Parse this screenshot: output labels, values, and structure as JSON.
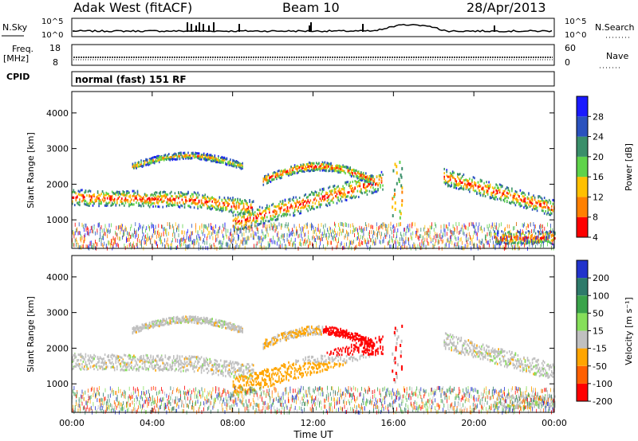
{
  "header": {
    "station": "Adak West (fitACF)",
    "beam": "Beam 10",
    "date": "28/Apr/2013"
  },
  "strip_labels": {
    "nsky": "N.Sky",
    "nsearch": "N.Search",
    "freq": "Freq.",
    "freq_unit": "[MHz]",
    "nave": "Nave",
    "cpid": "CPID",
    "cpid_text": "normal (fast) 151 RF",
    "nsky_ticks": [
      "10^5",
      "10^0"
    ],
    "nsearch_ticks": [
      "10^5",
      "10^0"
    ],
    "freq_ticks": [
      "18",
      "8"
    ],
    "nave_ticks": [
      "60",
      "0"
    ]
  },
  "chart_data": [
    {
      "type": "heatmap",
      "name": "power",
      "ylabel": "Slant Range [km]",
      "ylim": [
        200,
        4600
      ],
      "yticks": [
        "4000",
        "3000",
        "2000",
        "1000"
      ],
      "colorbar_label": "Power [dB]",
      "colorbar_ticks": [
        "28",
        "24",
        "20",
        "16",
        "12",
        "8",
        "4"
      ],
      "colors": [
        "#1a1aff",
        "#2a52be",
        "#3a8f6a",
        "#5fd34a",
        "#ffc000",
        "#ff8000",
        "#ff0000"
      ]
    },
    {
      "type": "heatmap",
      "name": "velocity",
      "ylabel": "Slant Range [km]",
      "ylim": [
        200,
        4600
      ],
      "yticks": [
        "4000",
        "3000",
        "2000",
        "1000"
      ],
      "colorbar_label": "Velocity [m s⁻¹]",
      "colorbar_ticks": [
        "200",
        "100",
        "50",
        "15",
        "-15",
        "-50",
        "-100",
        "-200"
      ],
      "colors": [
        "#2233cc",
        "#2e7a6a",
        "#3aa34a",
        "#86df5a",
        "#c0c0c0",
        "#ffa500",
        "#ff6000",
        "#ff0000"
      ]
    }
  ],
  "xaxis": {
    "label": "Time UT",
    "ticks": [
      "00:00",
      "04:00",
      "08:00",
      "12:00",
      "16:00",
      "20:00",
      "00:00"
    ]
  }
}
